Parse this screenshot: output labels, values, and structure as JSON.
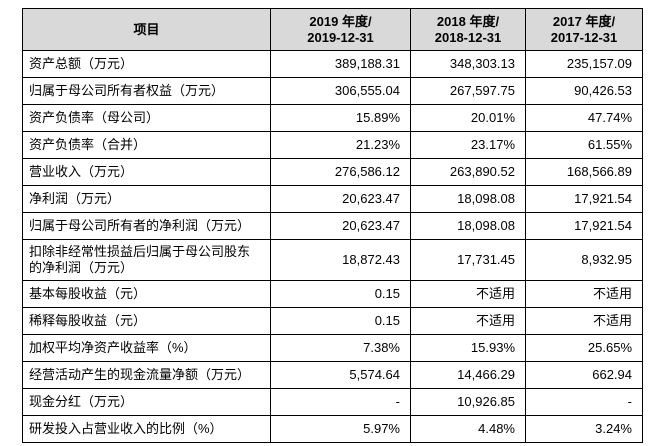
{
  "table": {
    "header": [
      [
        "项目"
      ],
      [
        "2019 年度/",
        "2019-12-31"
      ],
      [
        "2018 年度/",
        "2018-12-31"
      ],
      [
        "2017 年度/",
        "2017-12-31"
      ]
    ],
    "rows": [
      [
        "资产总额（万元）",
        "389,188.31",
        "348,303.13",
        "235,157.09"
      ],
      [
        "归属于母公司所有者权益（万元）",
        "306,555.04",
        "267,597.75",
        "90,426.53"
      ],
      [
        "资产负债率（母公司）",
        "15.89%",
        "20.01%",
        "47.74%"
      ],
      [
        "资产负债率（合并）",
        "21.23%",
        "23.17%",
        "61.55%"
      ],
      [
        "营业收入（万元）",
        "276,586.12",
        "263,890.52",
        "168,566.89"
      ],
      [
        "净利润（万元）",
        "20,623.47",
        "18,098.08",
        "17,921.54"
      ],
      [
        "归属于母公司所有者的净利润（万元）",
        "20,623.47",
        "18,098.08",
        "17,921.54"
      ],
      [
        "扣除非经常性损益后归属于母公司股东的净利润（万元）",
        "18,872.43",
        "17,731.45",
        "8,932.95"
      ],
      [
        "基本每股收益（元）",
        "0.15",
        "不适用",
        "不适用"
      ],
      [
        "稀释每股收益（元）",
        "0.15",
        "不适用",
        "不适用"
      ],
      [
        "加权平均净资产收益率（%）",
        "7.38%",
        "15.93%",
        "25.65%"
      ],
      [
        "经营活动产生的现金流量净额（万元）",
        "5,574.64",
        "14,466.29",
        "662.94"
      ],
      [
        "现金分红（万元）",
        "-",
        "10,926.85",
        "-"
      ],
      [
        "研发投入占营业收入的比例（%）",
        "5.97%",
        "4.48%",
        "3.24%"
      ]
    ]
  }
}
